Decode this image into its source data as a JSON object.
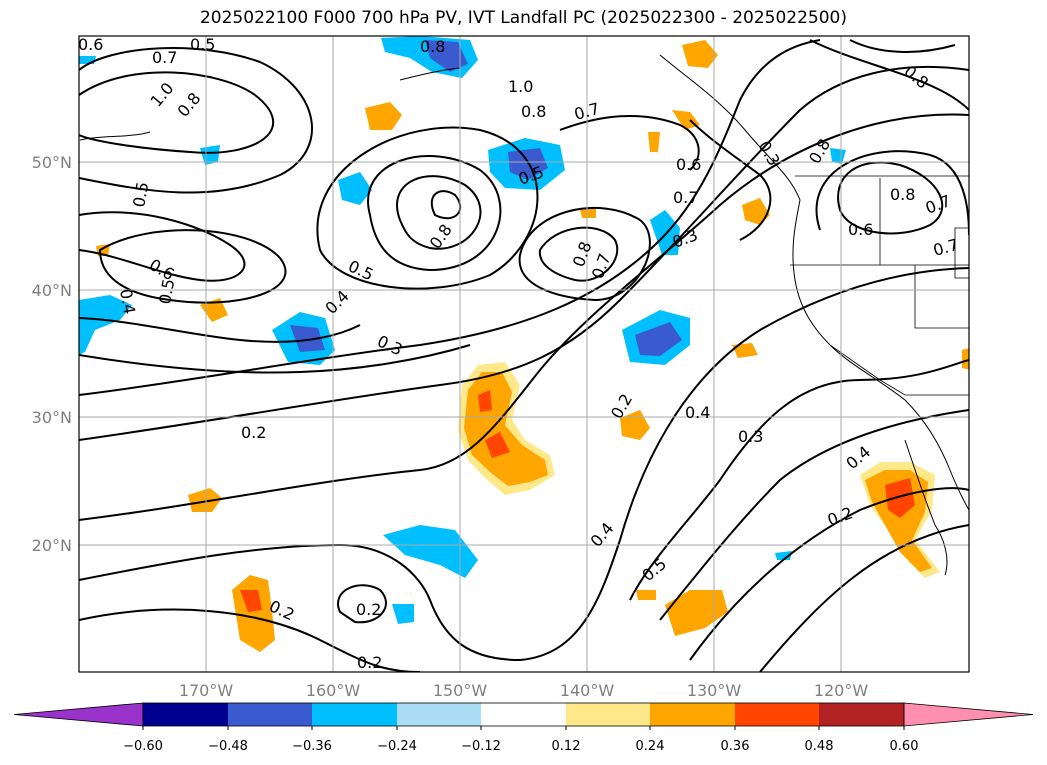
{
  "title": "2025022100 F000 700 hPa PV, IVT Landfall PC (2025022300 - 2025022500)",
  "map": {
    "lat_labels": [
      "50°N",
      "40°N",
      "30°N",
      "20°N"
    ],
    "lon_labels": [
      "170°W",
      "160°W",
      "150°W",
      "140°W",
      "130°W",
      "120°W"
    ],
    "contour_labels": [
      "0.6",
      "0.5",
      "0.7",
      "0.8",
      "1.0",
      "0.8",
      "0.8",
      "1.0",
      "0.8",
      "0.7",
      "0.3",
      "0.5",
      "0.6",
      "0.7",
      "0.8",
      "0.8",
      "0.7",
      "0.5",
      "0.6",
      "0.5",
      "0.4",
      "0.6",
      "0.5",
      "0.8",
      "0.7",
      "0.8",
      "0.7",
      "0.3",
      "0.4",
      "0.3",
      "0.2",
      "0.4",
      "0.2",
      "0.3",
      "0.4",
      "0.2",
      "0.4",
      "0.5",
      "0.2",
      "0.2",
      "0.2"
    ]
  },
  "colorbar": {
    "ticks": [
      "−0.60",
      "−0.48",
      "−0.36",
      "−0.24",
      "−0.12",
      "0.12",
      "0.24",
      "0.36",
      "0.48",
      "0.60"
    ],
    "colors": [
      "#9933cc",
      "#000090",
      "#3a5bd0",
      "#00bfff",
      "#aadcf5",
      "#ffffff",
      "#ffe88a",
      "#ffa500",
      "#ff4500",
      "#b22222",
      "#ff8fb0"
    ]
  }
}
